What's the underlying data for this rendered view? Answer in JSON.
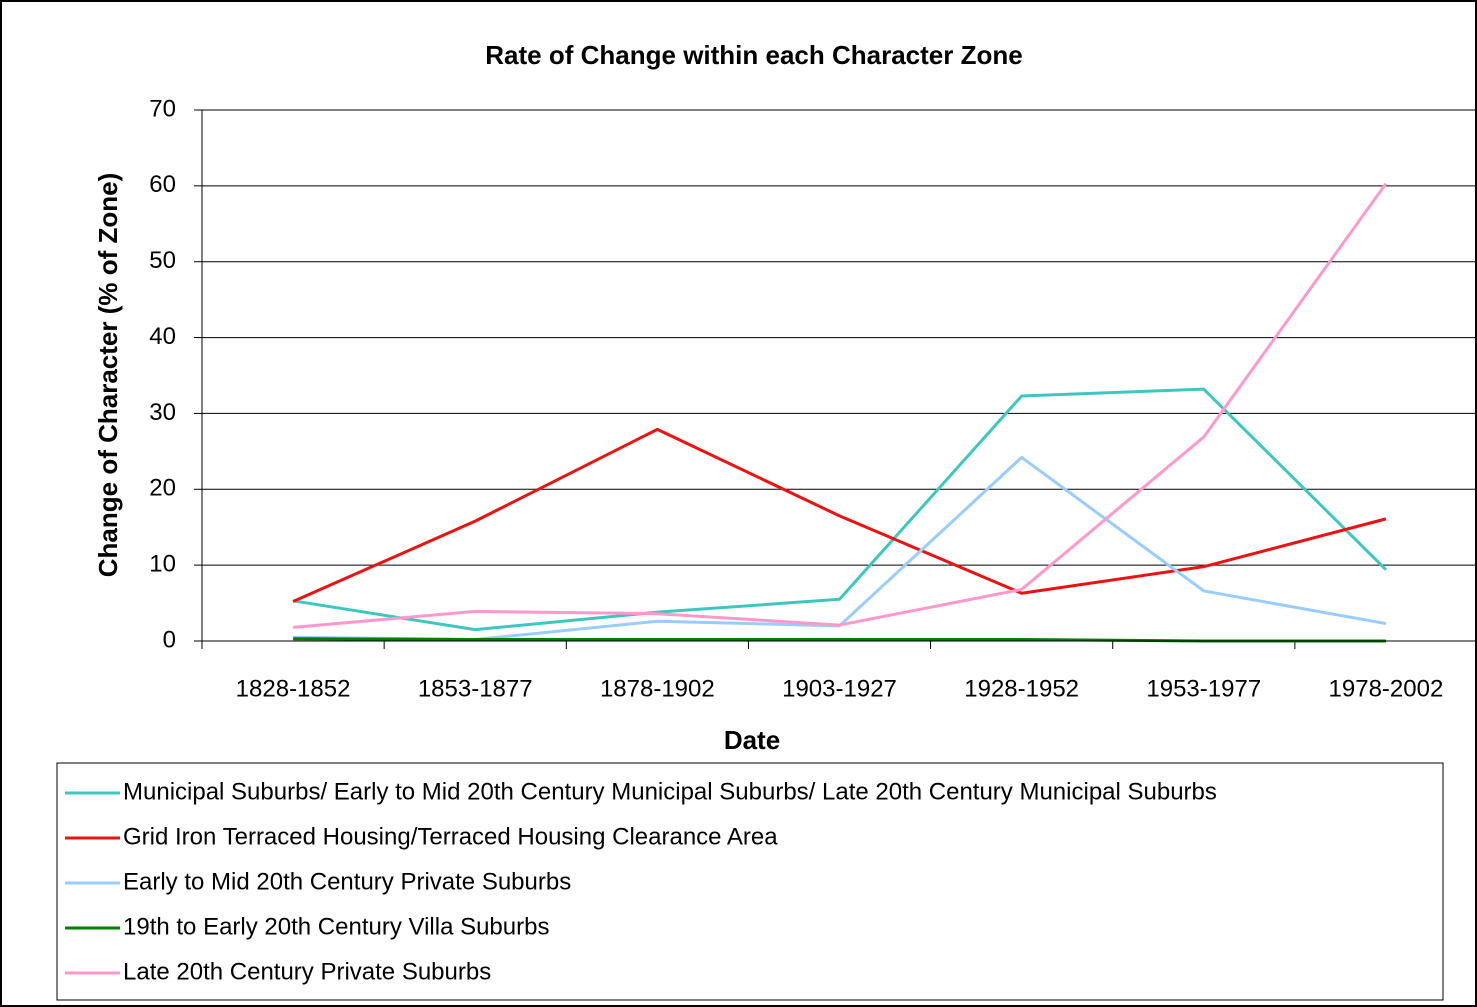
{
  "chart_data": {
    "type": "line",
    "title": "Rate of Change within each Character Zone",
    "x_label": "Date",
    "y_label": "Change of Character (% of Zone)",
    "categories": [
      "1828-1852",
      "1853-1877",
      "1878-1902",
      "1903-1927",
      "1928-1952",
      "1953-1977",
      "1978-2002"
    ],
    "series": [
      {
        "name": "Municipal Suburbs/ Early to Mid 20th Century Municipal Suburbs/ Late 20th Century Municipal Suburbs",
        "color": "#3cc8c0",
        "values": [
          5.3,
          1.5,
          3.8,
          5.5,
          32.3,
          33.2,
          9.4
        ]
      },
      {
        "name": "Grid Iron Terraced Housing/Terraced Housing Clearance Area",
        "color": "#ee1111",
        "values": [
          5.2,
          15.8,
          27.9,
          16.5,
          6.3,
          9.8,
          16.1
        ]
      },
      {
        "name": "Early to Mid 20th Century Private Suburbs",
        "color": "#99ccff",
        "values": [
          0.5,
          0.2,
          2.6,
          2.0,
          24.2,
          6.6,
          2.3
        ]
      },
      {
        "name": "19th to Early 20th Century Villa Suburbs",
        "color": "#008000",
        "values": [
          0.3,
          0.2,
          0.2,
          0.2,
          0.2,
          0,
          0
        ]
      },
      {
        "name": "Late 20th Century Private Suburbs",
        "color": "#ff99cc",
        "values": [
          1.8,
          3.9,
          3.6,
          2.1,
          6.8,
          26.9,
          60.3
        ]
      }
    ],
    "ylim": [
      0,
      70
    ],
    "yticks": [
      0,
      10,
      20,
      30,
      40,
      50,
      60,
      70
    ],
    "grid": true,
    "legend": "bottom"
  }
}
